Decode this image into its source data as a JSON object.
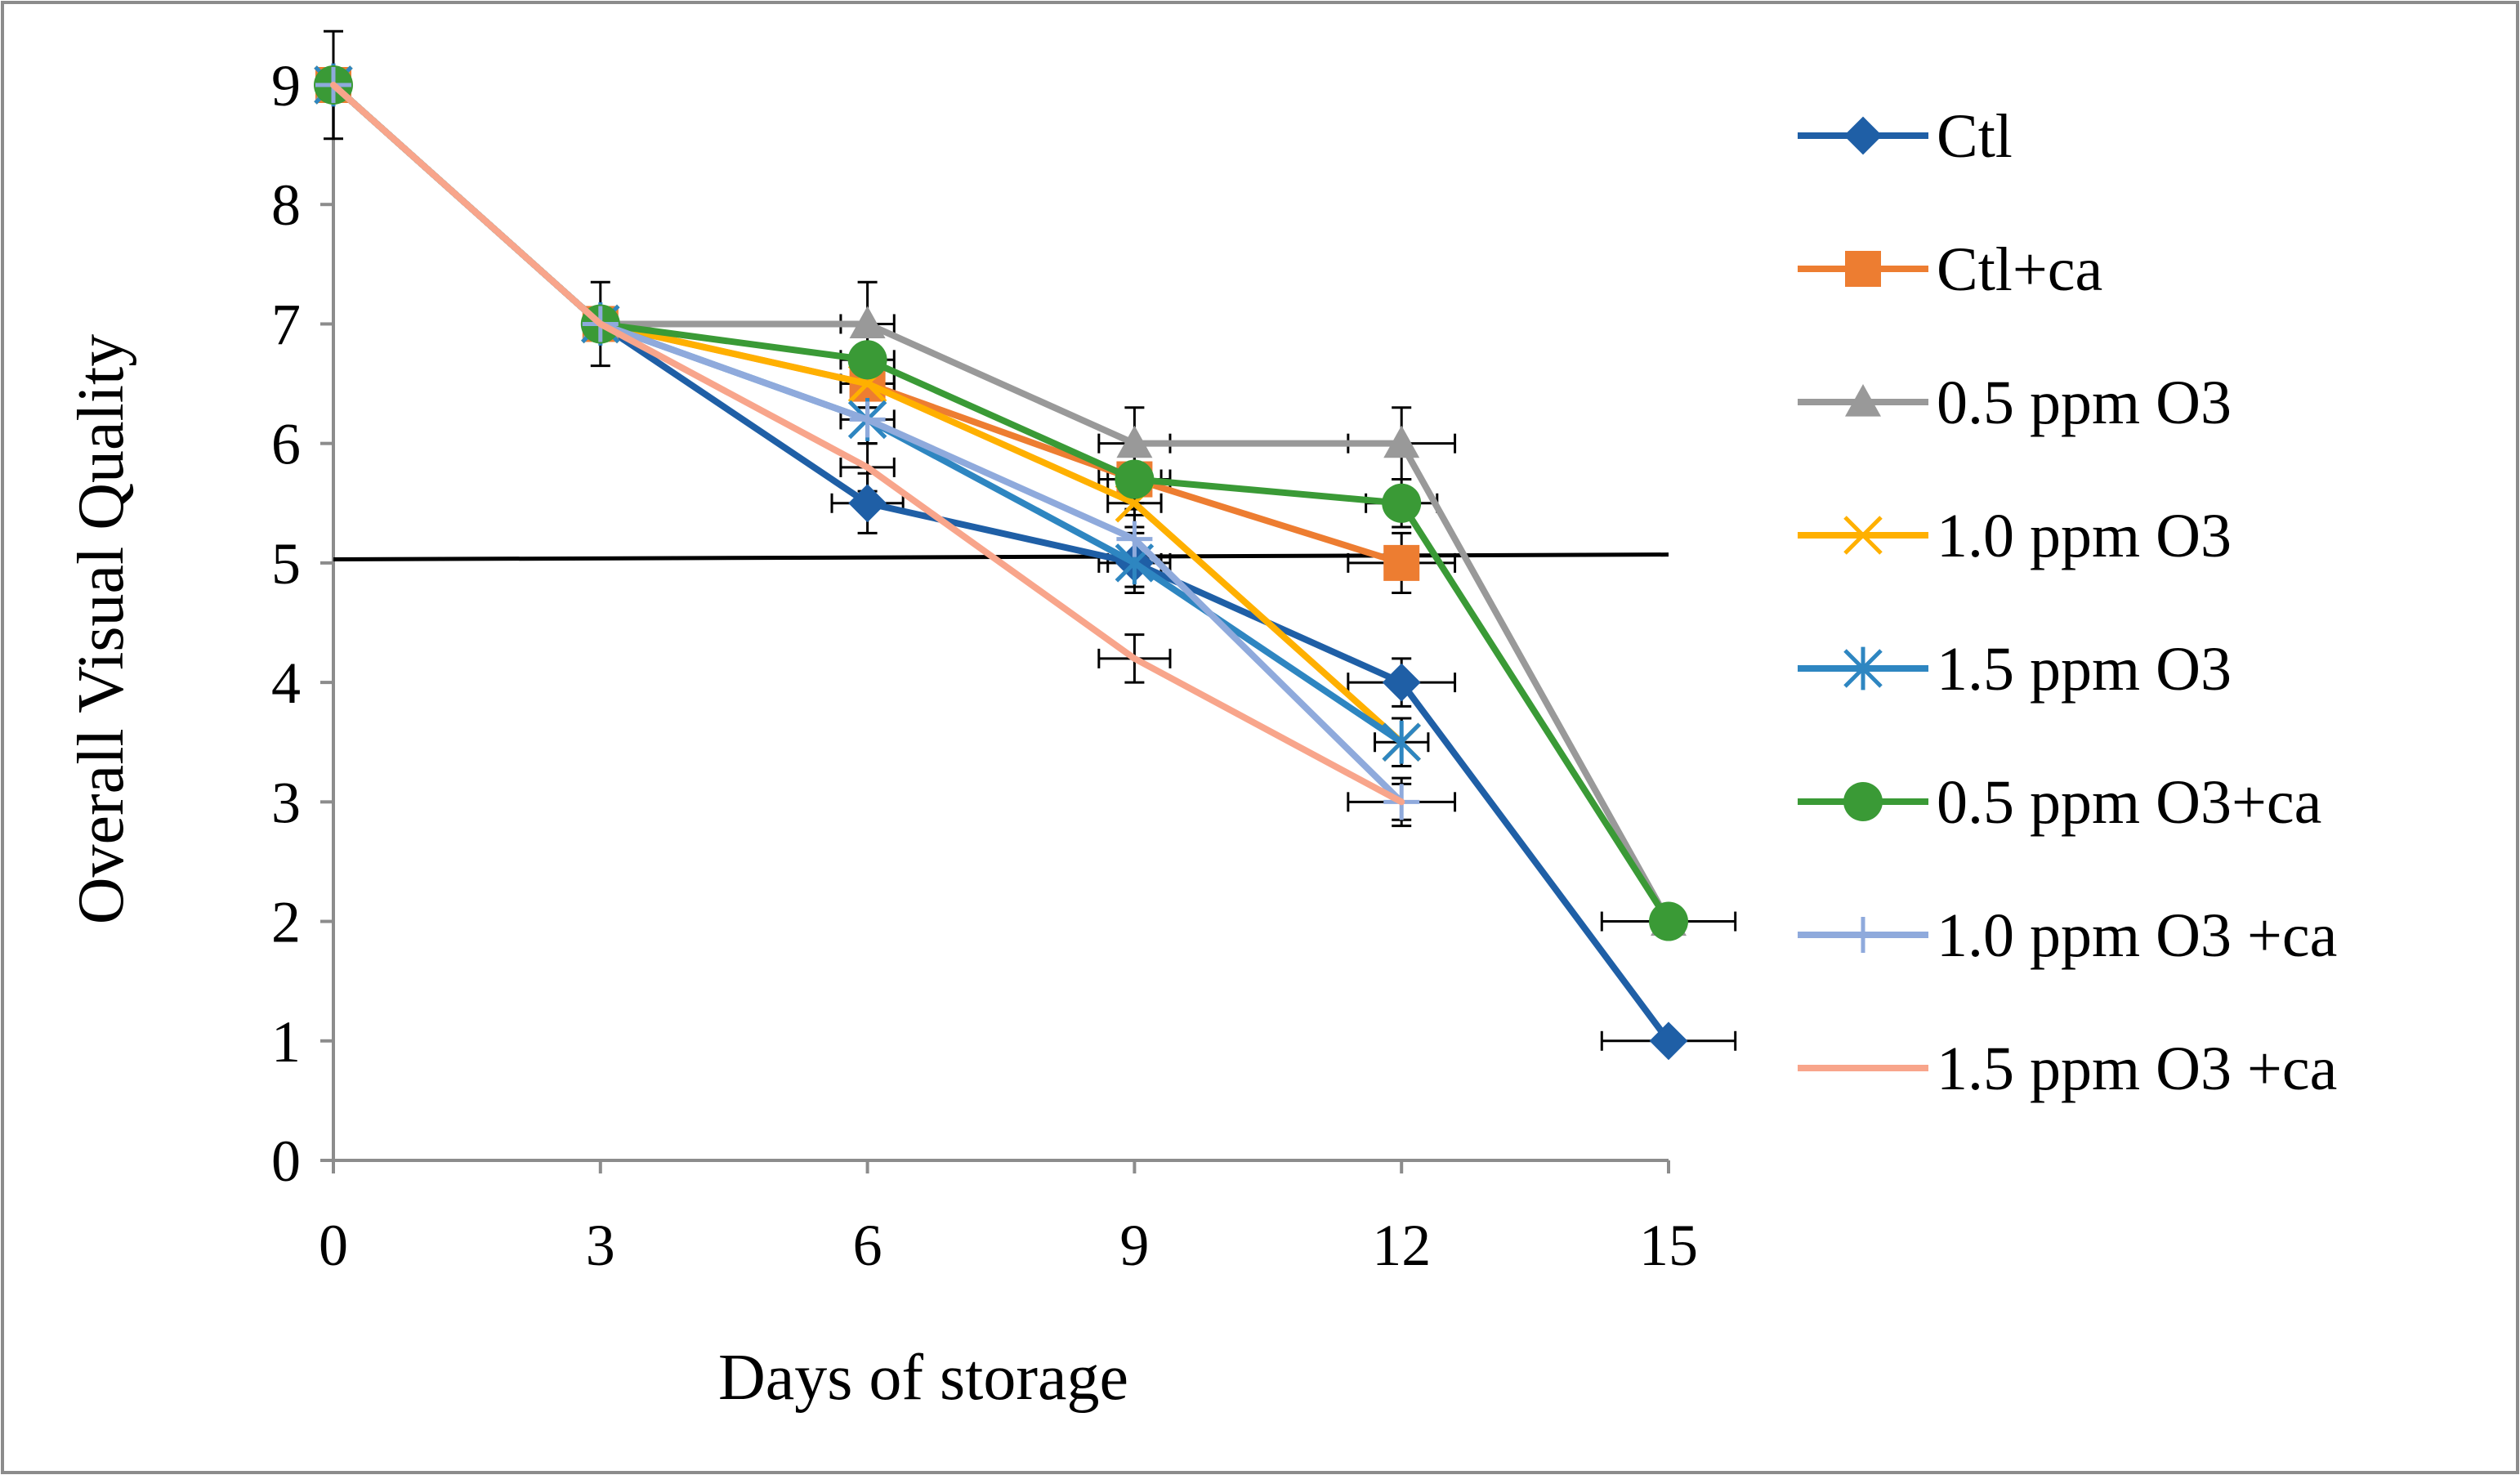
{
  "chart_data": {
    "type": "line",
    "xlabel": "Days of storage",
    "ylabel": "Overall Visual Quality",
    "x_ticks": [
      "0",
      "3",
      "6",
      "9",
      "12",
      "15"
    ],
    "y_ticks": [
      "0",
      "1",
      "2",
      "3",
      "4",
      "5",
      "6",
      "7",
      "8",
      "9"
    ],
    "xlim": [
      0,
      15
    ],
    "ylim": [
      0,
      9
    ],
    "grid": false,
    "legend_position": "right",
    "reference_line": {
      "y_start": 5.03,
      "y_end": 5.07,
      "color": "#000000"
    },
    "series": [
      {
        "name": "Ctl",
        "color": "#1F5FA6",
        "marker": "diamond",
        "points": [
          {
            "x": 0,
            "y": 9,
            "err": 0.45,
            "xerr": 0
          },
          {
            "x": 3,
            "y": 7,
            "err": 0.35,
            "xerr": 0
          },
          {
            "x": 6,
            "y": 5.5,
            "err": 0.25,
            "xerr": 0.4
          },
          {
            "x": 9,
            "y": 5.0,
            "err": 0.25,
            "xerr": 0.4
          },
          {
            "x": 12,
            "y": 4.0,
            "err": 0.2,
            "xerr": 0.6
          },
          {
            "x": 15,
            "y": 1.0,
            "err": 0,
            "xerr": 0.75
          }
        ]
      },
      {
        "name": "Ctl+ca",
        "color": "#ED7D31",
        "marker": "square",
        "points": [
          {
            "x": 0,
            "y": 9,
            "err": 0,
            "xerr": 0
          },
          {
            "x": 3,
            "y": 7,
            "err": 0,
            "xerr": 0
          },
          {
            "x": 6,
            "y": 6.5,
            "err": 0.2,
            "xerr": 0.3
          },
          {
            "x": 9,
            "y": 5.7,
            "err": 0.25,
            "xerr": 0.4
          },
          {
            "x": 12,
            "y": 5.0,
            "err": 0.25,
            "xerr": 0.6
          }
        ]
      },
      {
        "name": "0.5 ppm O3",
        "color": "#999999",
        "marker": "triangle",
        "points": [
          {
            "x": 0,
            "y": 9,
            "err": 0,
            "xerr": 0
          },
          {
            "x": 3,
            "y": 7,
            "err": 0,
            "xerr": 0
          },
          {
            "x": 6,
            "y": 7.0,
            "err": 0.35,
            "xerr": 0.3
          },
          {
            "x": 9,
            "y": 6.0,
            "err": 0.3,
            "xerr": 0.4
          },
          {
            "x": 12,
            "y": 6.0,
            "err": 0.3,
            "xerr": 0.6
          },
          {
            "x": 15,
            "y": 2.0,
            "err": 0,
            "xerr": 0
          }
        ]
      },
      {
        "name": "1.0 ppm O3",
        "color": "#FFB000",
        "marker": "x",
        "points": [
          {
            "x": 0,
            "y": 9,
            "err": 0,
            "xerr": 0
          },
          {
            "x": 3,
            "y": 7,
            "err": 0,
            "xerr": 0
          },
          {
            "x": 6,
            "y": 6.5,
            "err": 0.2,
            "xerr": 0.3
          },
          {
            "x": 9,
            "y": 5.5,
            "err": 0.2,
            "xerr": 0.3
          },
          {
            "x": 12,
            "y": 3.5,
            "err": 0.2,
            "xerr": 0
          }
        ]
      },
      {
        "name": "1.5 ppm O3",
        "color": "#2E86C1",
        "marker": "asterisk",
        "points": [
          {
            "x": 0,
            "y": 9,
            "err": 0,
            "xerr": 0
          },
          {
            "x": 3,
            "y": 7,
            "err": 0,
            "xerr": 0
          },
          {
            "x": 6,
            "y": 6.2,
            "err": 0.2,
            "xerr": 0.3
          },
          {
            "x": 9,
            "y": 5.0,
            "err": 0.2,
            "xerr": 0.3
          },
          {
            "x": 12,
            "y": 3.5,
            "err": 0.2,
            "xerr": 0.3
          }
        ]
      },
      {
        "name": "0.5 ppm O3+ca",
        "color": "#3A9A36",
        "marker": "circle",
        "points": [
          {
            "x": 0,
            "y": 9,
            "err": 0,
            "xerr": 0
          },
          {
            "x": 3,
            "y": 7,
            "err": 0,
            "xerr": 0
          },
          {
            "x": 6,
            "y": 6.7,
            "err": 0.2,
            "xerr": 0.3
          },
          {
            "x": 9,
            "y": 5.7,
            "err": 0.2,
            "xerr": 0.3
          },
          {
            "x": 12,
            "y": 5.5,
            "err": 0.2,
            "xerr": 0.4
          },
          {
            "x": 15,
            "y": 2.0,
            "err": 0,
            "xerr": 0.75
          }
        ]
      },
      {
        "name": "1.0 ppm O3 +ca",
        "color": "#8FAADC",
        "marker": "plus",
        "points": [
          {
            "x": 0,
            "y": 9,
            "err": 0,
            "xerr": 0
          },
          {
            "x": 3,
            "y": 7,
            "err": 0,
            "xerr": 0
          },
          {
            "x": 6,
            "y": 6.2,
            "err": 0.2,
            "xerr": 0
          },
          {
            "x": 9,
            "y": 5.2,
            "err": 0.2,
            "xerr": 0
          },
          {
            "x": 12,
            "y": 3.0,
            "err": 0.2,
            "xerr": 0
          }
        ]
      },
      {
        "name": "1.5 ppm O3 +ca",
        "color": "#F8A58B",
        "marker": "none",
        "points": [
          {
            "x": 0,
            "y": 9,
            "err": 0,
            "xerr": 0
          },
          {
            "x": 3,
            "y": 7,
            "err": 0,
            "xerr": 0
          },
          {
            "x": 6,
            "y": 5.8,
            "err": 0.2,
            "xerr": 0.3
          },
          {
            "x": 9,
            "y": 4.2,
            "err": 0.2,
            "xerr": 0.4
          },
          {
            "x": 12,
            "y": 3.0,
            "err": 0.15,
            "xerr": 0.6
          }
        ]
      }
    ]
  }
}
